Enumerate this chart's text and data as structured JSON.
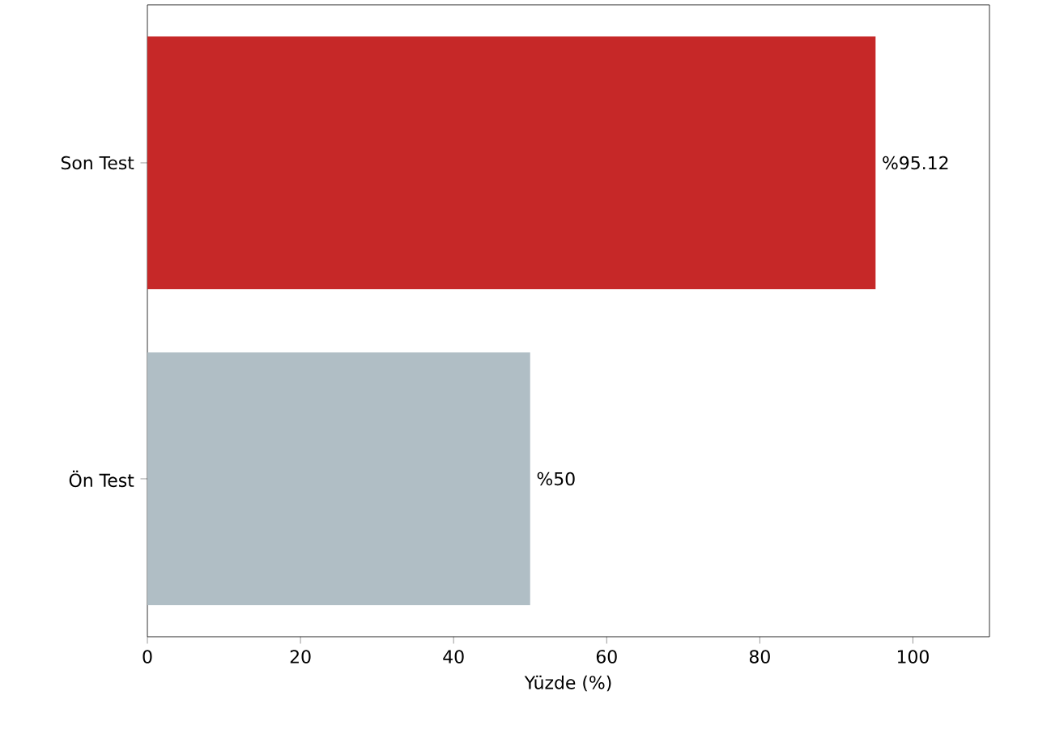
{
  "chart_data": {
    "type": "bar",
    "orientation": "horizontal",
    "xlabel": "Yüzde (%)",
    "categories": [
      "Son Test",
      "Ön Test"
    ],
    "values": [
      95.12,
      50
    ],
    "value_labels": [
      "%95.12",
      "%50"
    ],
    "colors": [
      "#c62828",
      "#b0bec5"
    ],
    "xlim": [
      0,
      110
    ],
    "xticks": [
      0,
      20,
      40,
      60,
      80,
      100
    ]
  }
}
